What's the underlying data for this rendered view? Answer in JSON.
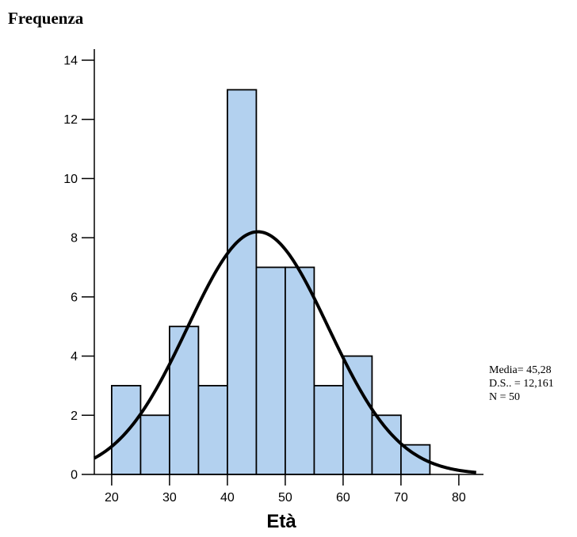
{
  "chart_data": {
    "type": "bar",
    "subtype": "histogram",
    "ylabel": "Frequenza",
    "xlabel": "Età",
    "bin_edges": [
      20,
      25,
      30,
      35,
      40,
      45,
      50,
      55,
      60,
      65,
      70,
      75
    ],
    "values": [
      3,
      2,
      5,
      3,
      13,
      7,
      7,
      3,
      4,
      2,
      1
    ],
    "xlim": [
      17,
      83
    ],
    "ylim": [
      0,
      14.5
    ],
    "xticks": [
      "20",
      "30",
      "40",
      "50",
      "60",
      "70",
      "80"
    ],
    "yticks": [
      "0",
      "2",
      "4",
      "6",
      "8",
      "10",
      "12",
      "14"
    ],
    "normal_curve": {
      "mean": 45.28,
      "sd": 12.161,
      "n": 50,
      "bin_width": 5
    },
    "bar_color": "#b3d1ef",
    "bar_edge_color": "#000000",
    "curve_color": "#000000",
    "stats": [
      "Media= 45,28",
      "D.S.. = 12,161",
      "N = 50"
    ]
  }
}
